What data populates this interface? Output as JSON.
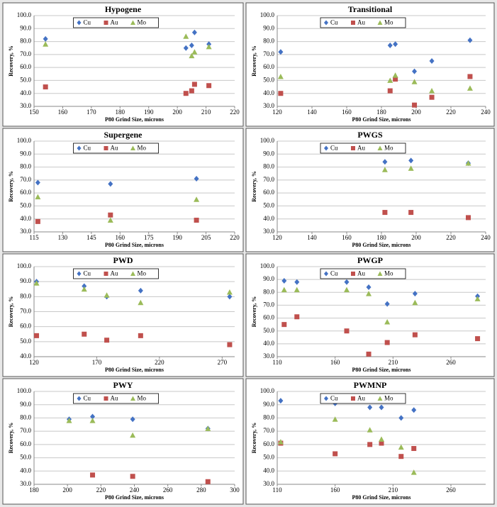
{
  "chart_data": [
    {
      "type": "scatter",
      "title": "Hypogene",
      "x_label": "P80 Grind Size, microns",
      "y_label": "Recovery, %",
      "legend": "top",
      "grid": true,
      "xlim": [
        150,
        220
      ],
      "xticks": [
        150,
        160,
        170,
        180,
        190,
        200,
        210,
        220
      ],
      "ylim": [
        30,
        100
      ],
      "yticks": [
        {
          "value": 30,
          "label": "30.0"
        },
        {
          "value": 40,
          "label": "40.0"
        },
        {
          "value": 50,
          "label": "50.0"
        },
        {
          "value": 60,
          "label": "60.0"
        },
        {
          "value": 70,
          "label": "70.0"
        },
        {
          "value": 80,
          "label": "80.0"
        },
        {
          "value": 90,
          "label": "90.0"
        },
        {
          "value": 100,
          "label": "100.0"
        }
      ],
      "x": [
        154,
        203,
        205,
        206,
        211
      ],
      "series": [
        {
          "name": "Cu",
          "color": "#4472c4",
          "marker": "diamond",
          "values": [
            82,
            75,
            77,
            87,
            78
          ]
        },
        {
          "name": "Au",
          "color": "#c0504d",
          "marker": "square",
          "values": [
            45,
            40,
            42,
            47,
            46
          ]
        },
        {
          "name": "Mo",
          "color": "#9bbb59",
          "marker": "triangle",
          "values": [
            78,
            84,
            69,
            72,
            76
          ]
        }
      ]
    },
    {
      "type": "scatter",
      "title": "Transitional",
      "x_label": "P80 Grind Size, microns",
      "y_label": "Recovery, %",
      "legend": "top",
      "grid": true,
      "xlim": [
        120,
        240
      ],
      "xticks": [
        120,
        140,
        160,
        180,
        200,
        220,
        240
      ],
      "ylim": [
        30,
        100
      ],
      "yticks": [
        {
          "value": 30,
          "label": "30.0"
        },
        {
          "value": 40,
          "label": "40.0"
        },
        {
          "value": 50,
          "label": "50.0"
        },
        {
          "value": 60,
          "label": "60.0"
        },
        {
          "value": 70,
          "label": "70.0"
        },
        {
          "value": 80,
          "label": "80.0"
        },
        {
          "value": 90,
          "label": "90.0"
        },
        {
          "value": 100,
          "label": "100.0"
        }
      ],
      "x": [
        122,
        185,
        188,
        199,
        209,
        231
      ],
      "series": [
        {
          "name": "Cu",
          "color": "#4472c4",
          "marker": "diamond",
          "values": [
            72,
            77,
            78,
            57,
            65,
            81
          ]
        },
        {
          "name": "Au",
          "color": "#c0504d",
          "marker": "square",
          "values": [
            40,
            42,
            51,
            31,
            37,
            53
          ]
        },
        {
          "name": "Mo",
          "color": "#9bbb59",
          "marker": "triangle",
          "values": [
            53,
            50,
            54,
            49,
            42,
            44
          ]
        }
      ]
    },
    {
      "type": "scatter",
      "title": "Supergene",
      "x_label": "P80 Grind Size, microns",
      "y_label": "Recovery, %",
      "legend": "top",
      "grid": true,
      "xlim": [
        115,
        220
      ],
      "xticks": [
        115,
        130,
        145,
        160,
        175,
        190,
        205,
        220
      ],
      "ylim": [
        30,
        100
      ],
      "yticks": [
        {
          "value": 30,
          "label": "30.0"
        },
        {
          "value": 40,
          "label": "40.0"
        },
        {
          "value": 50,
          "label": "50.0"
        },
        {
          "value": 60,
          "label": "60.0"
        },
        {
          "value": 70,
          "label": "70.0"
        },
        {
          "value": 80,
          "label": "80.0"
        },
        {
          "value": 90,
          "label": "90.0"
        },
        {
          "value": 100,
          "label": "100.0"
        }
      ],
      "x": [
        117,
        155,
        200
      ],
      "series": [
        {
          "name": "Cu",
          "color": "#4472c4",
          "marker": "diamond",
          "values": [
            68,
            67,
            71
          ]
        },
        {
          "name": "Au",
          "color": "#c0504d",
          "marker": "square",
          "values": [
            38,
            43,
            39
          ]
        },
        {
          "name": "Mo",
          "color": "#9bbb59",
          "marker": "triangle",
          "values": [
            57,
            39,
            55
          ]
        }
      ]
    },
    {
      "type": "scatter",
      "title": "PWGS",
      "x_label": "P80 Grind Size, microns",
      "y_label": "Recovery, %",
      "legend": "top",
      "grid": true,
      "xlim": [
        120,
        240
      ],
      "xticks": [
        120,
        140,
        160,
        180,
        200,
        220,
        240
      ],
      "ylim": [
        30,
        100
      ],
      "yticks": [
        {
          "value": 30,
          "label": "30.0"
        },
        {
          "value": 40,
          "label": "40.0"
        },
        {
          "value": 50,
          "label": "50.0"
        },
        {
          "value": 60,
          "label": "60.0"
        },
        {
          "value": 70,
          "label": "70.0"
        },
        {
          "value": 80,
          "label": "80.0"
        },
        {
          "value": 90,
          "label": "90.0"
        },
        {
          "value": 100,
          "label": "100.0"
        }
      ],
      "x": [
        182,
        197,
        230
      ],
      "series": [
        {
          "name": "Cu",
          "color": "#4472c4",
          "marker": "diamond",
          "values": [
            84,
            85,
            83
          ]
        },
        {
          "name": "Au",
          "color": "#c0504d",
          "marker": "square",
          "values": [
            45,
            45,
            41
          ]
        },
        {
          "name": "Mo",
          "color": "#9bbb59",
          "marker": "triangle",
          "values": [
            78,
            79,
            83
          ]
        }
      ]
    },
    {
      "type": "scatter",
      "title": "PWD",
      "x_label": "P80 Grind Size, microns",
      "y_label": "Recovery, %",
      "legend": "top",
      "grid": true,
      "xlim": [
        120,
        280
      ],
      "xticks": [
        120,
        170,
        220,
        270
      ],
      "ylim": [
        40,
        100
      ],
      "yticks": [
        {
          "value": 40,
          "label": "40.0"
        },
        {
          "value": 50,
          "label": "50.0"
        },
        {
          "value": 60,
          "label": "60.0"
        },
        {
          "value": 70,
          "label": "70.0"
        },
        {
          "value": 80,
          "label": "80.0"
        },
        {
          "value": 90,
          "label": "90.0"
        },
        {
          "value": 100,
          "label": "100.0"
        }
      ],
      "x": [
        122,
        160,
        178,
        205,
        276
      ],
      "series": [
        {
          "name": "Cu",
          "color": "#4472c4",
          "marker": "diamond",
          "values": [
            90,
            87,
            80,
            84,
            80
          ]
        },
        {
          "name": "Au",
          "color": "#c0504d",
          "marker": "square",
          "values": [
            54,
            55,
            51,
            54,
            48
          ]
        },
        {
          "name": "Mo",
          "color": "#9bbb59",
          "marker": "triangle",
          "values": [
            89,
            85,
            81,
            76,
            83
          ]
        }
      ]
    },
    {
      "type": "scatter",
      "title": "PWGP",
      "x_label": "P80 Grind Size, microns",
      "y_label": "Recovery, %",
      "legend": "top",
      "grid": true,
      "xlim": [
        110,
        290
      ],
      "xticks": [
        110,
        160,
        210,
        260
      ],
      "ylim": [
        30,
        100
      ],
      "yticks": [
        {
          "value": 30,
          "label": "30.0"
        },
        {
          "value": 40,
          "label": "40.0"
        },
        {
          "value": 50,
          "label": "50.0"
        },
        {
          "value": 60,
          "label": "60.0"
        },
        {
          "value": 70,
          "label": "70.0"
        },
        {
          "value": 80,
          "label": "80.0"
        },
        {
          "value": 90,
          "label": "90.0"
        },
        {
          "value": 100,
          "label": "100.0"
        }
      ],
      "x": [
        116,
        127,
        170,
        189,
        205,
        229,
        283
      ],
      "series": [
        {
          "name": "Cu",
          "color": "#4472c4",
          "marker": "diamond",
          "values": [
            89,
            88,
            88,
            84,
            71,
            79,
            77
          ]
        },
        {
          "name": "Au",
          "color": "#c0504d",
          "marker": "square",
          "values": [
            55,
            61,
            50,
            32,
            41,
            47,
            44
          ]
        },
        {
          "name": "Mo",
          "color": "#9bbb59",
          "marker": "triangle",
          "values": [
            82,
            82,
            82,
            79,
            57,
            72,
            75
          ]
        }
      ]
    },
    {
      "type": "scatter",
      "title": "PWY",
      "x_label": "P80 Grind Size, microns",
      "y_label": "Recovery, %",
      "legend": "top",
      "grid": true,
      "xlim": [
        180,
        300
      ],
      "xticks": [
        180,
        200,
        220,
        240,
        260,
        280,
        300
      ],
      "ylim": [
        30,
        100
      ],
      "yticks": [
        {
          "value": 30,
          "label": "30.0"
        },
        {
          "value": 40,
          "label": "40.0"
        },
        {
          "value": 50,
          "label": "50.0"
        },
        {
          "value": 60,
          "label": "60.0"
        },
        {
          "value": 70,
          "label": "70.0"
        },
        {
          "value": 80,
          "label": "80.0"
        },
        {
          "value": 90,
          "label": "90.0"
        },
        {
          "value": 100,
          "label": "100.0"
        }
      ],
      "x": [
        201,
        215,
        239,
        284
      ],
      "series": [
        {
          "name": "Cu",
          "color": "#4472c4",
          "marker": "diamond",
          "values": [
            79,
            81,
            79,
            72
          ]
        },
        {
          "name": "Au",
          "color": "#c0504d",
          "marker": "square",
          "values": [
            null,
            37,
            36,
            32
          ]
        },
        {
          "name": "Mo",
          "color": "#9bbb59",
          "marker": "triangle",
          "values": [
            78,
            78,
            67,
            72
          ]
        }
      ]
    },
    {
      "type": "scatter",
      "title": "PWMNP",
      "x_label": "P80 Grind Size, microns",
      "y_label": "Recovery, %",
      "legend": "top",
      "grid": true,
      "xlim": [
        110,
        290
      ],
      "xticks": [
        110,
        160,
        210,
        260
      ],
      "ylim": [
        30,
        100
      ],
      "yticks": [
        {
          "value": 30,
          "label": "30.0"
        },
        {
          "value": 40,
          "label": "40.0"
        },
        {
          "value": 50,
          "label": "50.0"
        },
        {
          "value": 60,
          "label": "60.0"
        },
        {
          "value": 70,
          "label": "70.0"
        },
        {
          "value": 80,
          "label": "80.0"
        },
        {
          "value": 90,
          "label": "90.0"
        },
        {
          "value": 100,
          "label": "100.0"
        }
      ],
      "x": [
        113,
        160,
        190,
        200,
        217,
        228
      ],
      "series": [
        {
          "name": "Cu",
          "color": "#4472c4",
          "marker": "diamond",
          "values": [
            93,
            91,
            88,
            88,
            80,
            86
          ]
        },
        {
          "name": "Au",
          "color": "#c0504d",
          "marker": "square",
          "values": [
            61,
            53,
            60,
            61,
            51,
            57
          ]
        },
        {
          "name": "Mo",
          "color": "#9bbb59",
          "marker": "triangle",
          "values": [
            62,
            79,
            71,
            64,
            58,
            39
          ]
        }
      ]
    }
  ]
}
